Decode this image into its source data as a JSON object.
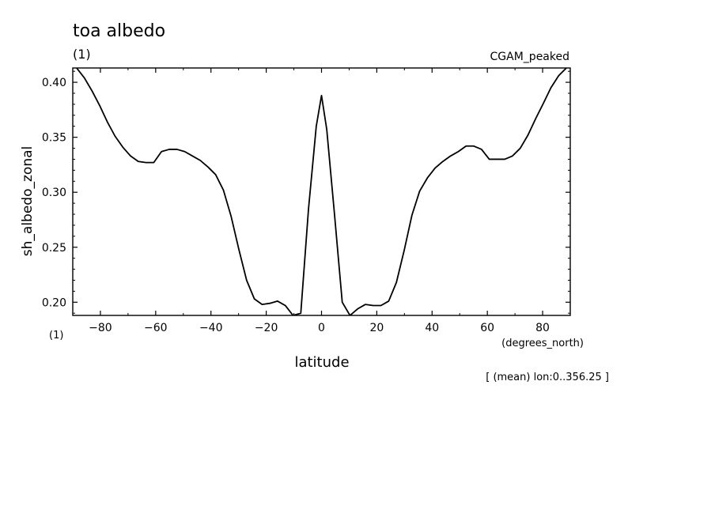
{
  "chart_data": {
    "type": "line",
    "title": "toa albedo",
    "subtitle_left": "(1)",
    "subtitle_right": "CGAM_peaked",
    "ylabel": "sh_albedo_zonal",
    "xlabel": "latitude",
    "x_unit": "(degrees_north)",
    "y_unit": "(1)",
    "footer": "[ (mean) lon:0..356.25 ]",
    "xlim": [
      -90,
      90
    ],
    "ylim": [
      0.188,
      0.413
    ],
    "xticks": [
      -80,
      -60,
      -40,
      -20,
      0,
      20,
      40,
      60,
      80
    ],
    "xtick_labels": [
      "−80",
      "−60",
      "−40",
      "−20",
      "0",
      "20",
      "40",
      "60",
      "80"
    ],
    "yticks": [
      0.2,
      0.25,
      0.3,
      0.35,
      0.4
    ],
    "ytick_labels": [
      "0.20",
      "0.25",
      "0.30",
      "0.35",
      "0.40"
    ],
    "grid": false,
    "x": [
      -88.6,
      -85.8,
      -83,
      -80.3,
      -77.5,
      -74.7,
      -71.9,
      -69.1,
      -66.3,
      -63.5,
      -60.7,
      -57.9,
      -55.1,
      -52.3,
      -49.5,
      -46.7,
      -43.9,
      -41.1,
      -38.3,
      -35.5,
      -32.7,
      -29.9,
      -27.1,
      -24.3,
      -21.5,
      -18.7,
      -15.9,
      -13.1,
      -10.3,
      -7.5,
      -4.7,
      -1.9,
      0,
      1.9,
      4.7,
      7.5,
      10.3,
      13.1,
      15.9,
      18.7,
      21.5,
      24.3,
      27.1,
      29.9,
      32.7,
      35.5,
      38.3,
      41.1,
      43.9,
      46.7,
      49.5,
      52.3,
      55.1,
      57.9,
      60.7,
      63.5,
      66.3,
      69.1,
      71.9,
      74.7,
      77.5,
      80.3,
      83,
      85.8,
      88.6
    ],
    "series": [
      {
        "color": "#000000",
        "values": [
          0.413,
          0.404,
          0.392,
          0.379,
          0.364,
          0.351,
          0.341,
          0.333,
          0.328,
          0.327,
          0.327,
          0.337,
          0.339,
          0.339,
          0.337,
          0.333,
          0.329,
          0.323,
          0.316,
          0.302,
          0.278,
          0.248,
          0.22,
          0.203,
          0.198,
          0.199,
          0.201,
          0.197,
          0.188,
          0.19,
          0.285,
          0.36,
          0.388,
          0.357,
          0.28,
          0.2,
          0.188,
          0.194,
          0.198,
          0.197,
          0.197,
          0.201,
          0.218,
          0.247,
          0.279,
          0.301,
          0.313,
          0.322,
          0.328,
          0.333,
          0.337,
          0.342,
          0.342,
          0.339,
          0.33,
          0.33,
          0.33,
          0.333,
          0.34,
          0.352,
          0.367,
          0.381,
          0.395,
          0.406,
          0.413
        ]
      }
    ]
  }
}
